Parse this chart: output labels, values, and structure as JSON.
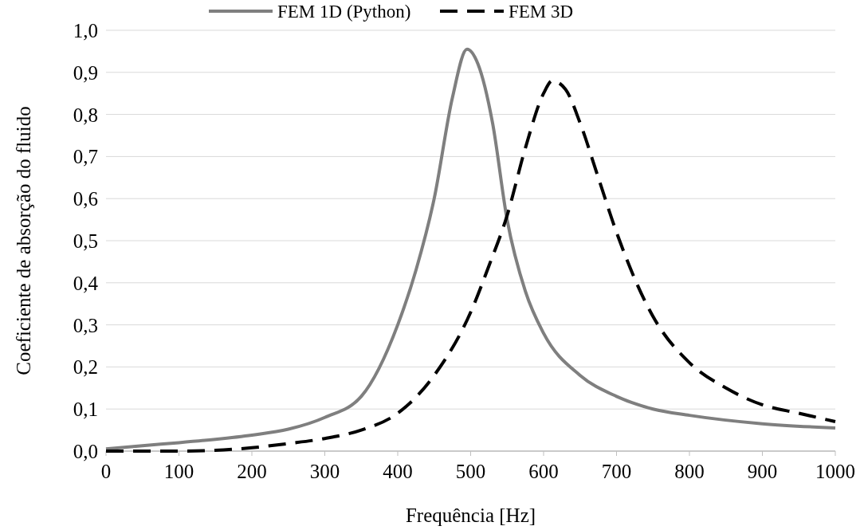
{
  "chart_data": {
    "type": "line",
    "xlabel": "Frequência [Hz]",
    "ylabel": "Coeficiente de absorção do fluido",
    "xlim": [
      0,
      1000
    ],
    "xticks": [
      0,
      100,
      200,
      300,
      400,
      500,
      600,
      700,
      800,
      900,
      1000
    ],
    "ylim": [
      0,
      1
    ],
    "yticks": [
      {
        "value": 0,
        "label": "0,0"
      },
      {
        "value": 0.1,
        "label": "0,1"
      },
      {
        "value": 0.2,
        "label": "0,2"
      },
      {
        "value": 0.3,
        "label": "0,3"
      },
      {
        "value": 0.4,
        "label": "0,4"
      },
      {
        "value": 0.5,
        "label": "0,5"
      },
      {
        "value": 0.6,
        "label": "0,6"
      },
      {
        "value": 0.7,
        "label": "0,7"
      },
      {
        "value": 0.8,
        "label": "0,8"
      },
      {
        "value": 0.9,
        "label": "0,9"
      },
      {
        "value": 1,
        "label": "1,0"
      }
    ],
    "grid": "y",
    "legend": "top",
    "series": [
      {
        "name": "FEM 1D (Python)",
        "color": "#7f7f7f",
        "line_style": "solid",
        "x": [
          0,
          50,
          100,
          150,
          200,
          250,
          300,
          350,
          400,
          425,
          450,
          475,
          495,
          510,
          530,
          550,
          575,
          600,
          650,
          700,
          750,
          800,
          900,
          1000
        ],
        "values": [
          0.005,
          0.013,
          0.02,
          0.028,
          0.038,
          0.052,
          0.08,
          0.13,
          0.3,
          0.43,
          0.6,
          0.84,
          0.955,
          0.92,
          0.78,
          0.55,
          0.38,
          0.28,
          0.18,
          0.13,
          0.1,
          0.085,
          0.065,
          0.055
        ]
      },
      {
        "name": "FEM 3D",
        "color": "#000000",
        "line_style": "dashed",
        "x": [
          0,
          100,
          150,
          200,
          250,
          300,
          350,
          400,
          450,
          500,
          525,
          550,
          575,
          600,
          612,
          630,
          650,
          675,
          700,
          750,
          800,
          850,
          900,
          950,
          1000
        ],
        "values": [
          0,
          0,
          0.002,
          0.008,
          0.018,
          0.03,
          0.05,
          0.09,
          0.18,
          0.33,
          0.44,
          0.56,
          0.72,
          0.85,
          0.88,
          0.86,
          0.78,
          0.65,
          0.52,
          0.32,
          0.21,
          0.15,
          0.11,
          0.09,
          0.07
        ]
      }
    ]
  }
}
